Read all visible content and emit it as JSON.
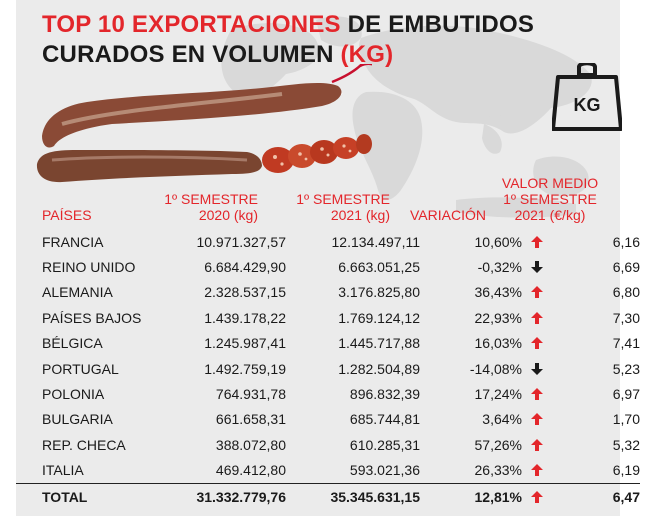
{
  "title": {
    "part1_red": "TOP 10 EXPORTACIONES",
    "part2": " DE EMBUTIDOS",
    "part3": "CURADOS EN VOLUMEN ",
    "part4_red": "(KG)"
  },
  "icon": {
    "weight_label": "KG",
    "name": "kg-weight-icon"
  },
  "colors": {
    "accent_red": "#e3262b",
    "text": "#1a1a1a",
    "background": "#ebebeb"
  },
  "chart_data": {
    "type": "table",
    "columns": {
      "country": "PAÍSES",
      "sem2020": "1º SEMESTRE\n2020 (kg)",
      "sem2021": "1º SEMESTRE\n2021 (kg)",
      "variation": "VARIACIÓN",
      "avg_value": "VALOR MEDIO\n1º SEMESTRE\n2021 (€/kg)"
    },
    "rows": [
      {
        "country": "FRANCIA",
        "sem2020": "10.971.327,57",
        "sem2021": "12.134.497,11",
        "variation": "10,60%",
        "trend": "up",
        "avg_value": "6,16"
      },
      {
        "country": "REINO UNIDO",
        "sem2020": "6.684.429,90",
        "sem2021": "6.663.051,25",
        "variation": "-0,32%",
        "trend": "down",
        "avg_value": "6,69"
      },
      {
        "country": "ALEMANIA",
        "sem2020": "2.328.537,15",
        "sem2021": "3.176.825,80",
        "variation": "36,43%",
        "trend": "up",
        "avg_value": "6,80"
      },
      {
        "country": "PAÍSES BAJOS",
        "sem2020": "1.439.178,22",
        "sem2021": "1.769.124,12",
        "variation": "22,93%",
        "trend": "up",
        "avg_value": "7,30"
      },
      {
        "country": "BÉLGICA",
        "sem2020": "1.245.987,41",
        "sem2021": "1.445.717,88",
        "variation": "16,03%",
        "trend": "up",
        "avg_value": "7,41"
      },
      {
        "country": "PORTUGAL",
        "sem2020": "1.492.759,19",
        "sem2021": "1.282.504,89",
        "variation": "-14,08%",
        "trend": "down",
        "avg_value": "5,23"
      },
      {
        "country": "POLONIA",
        "sem2020": "764.931,78",
        "sem2021": "896.832,39",
        "variation": "17,24%",
        "trend": "up",
        "avg_value": "6,97"
      },
      {
        "country": "BULGARIA",
        "sem2020": "661.658,31",
        "sem2021": "685.744,81",
        "variation": "3,64%",
        "trend": "up",
        "avg_value": "1,70"
      },
      {
        "country": "REP. CHECA",
        "sem2020": "388.072,80",
        "sem2021": "610.285,31",
        "variation": "57,26%",
        "trend": "up",
        "avg_value": "5,32"
      },
      {
        "country": "ITALIA",
        "sem2020": "469.412,80",
        "sem2021": "593.021,36",
        "variation": "26,33%",
        "trend": "up",
        "avg_value": "6,19"
      }
    ],
    "total": {
      "country": "TOTAL",
      "sem2020": "31.332.779,76",
      "sem2021": "35.345.631,15",
      "variation": "12,81%",
      "trend": "up",
      "avg_value": "6,47"
    }
  }
}
